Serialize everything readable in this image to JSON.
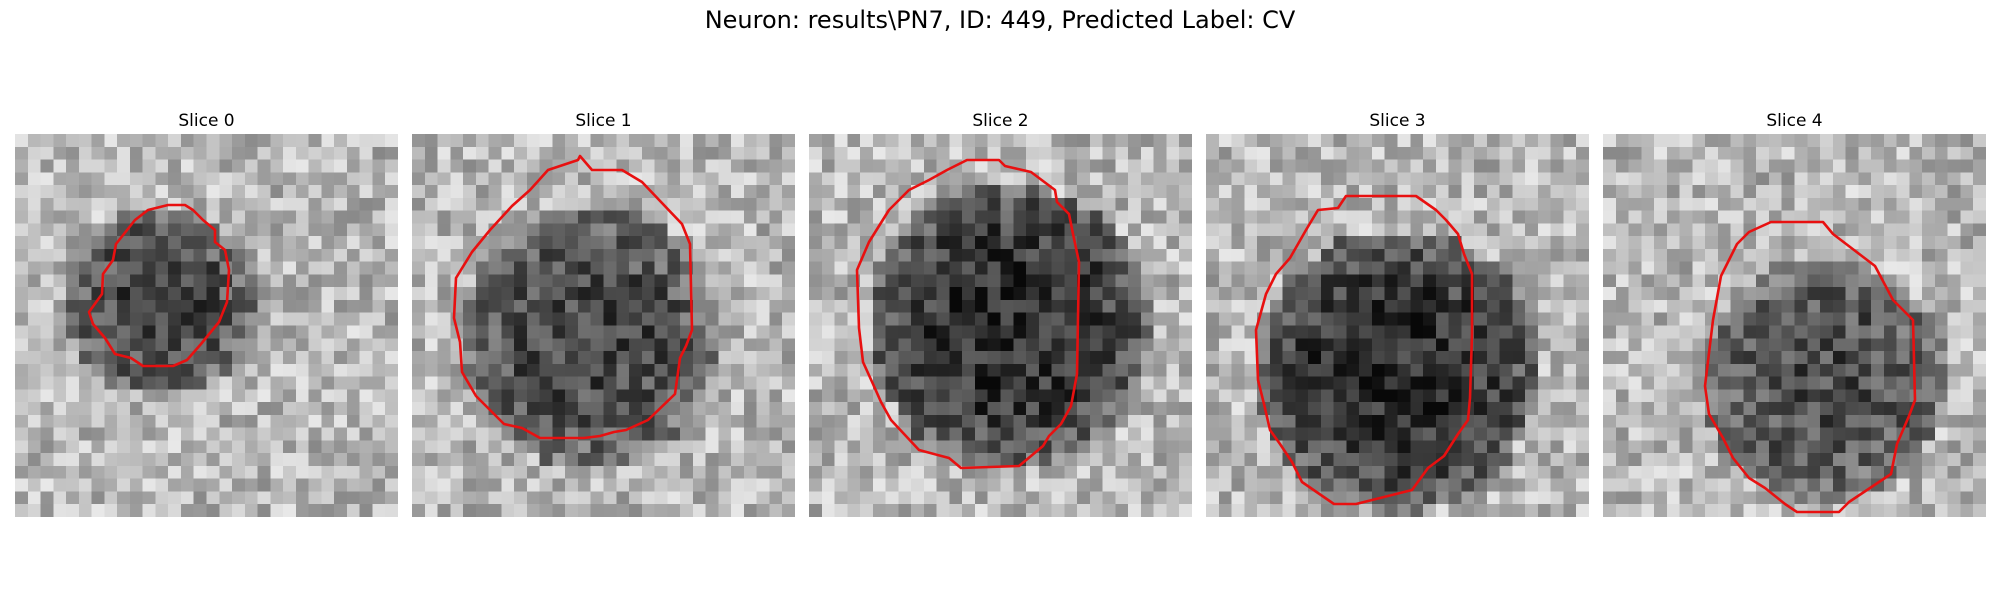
{
  "figure": {
    "title": "Neuron: results\\PN7, ID: 449, Predicted Label: CV"
  },
  "colors": {
    "contour": "#e81010",
    "background": "#ffffff"
  },
  "panels": [
    {
      "title": "Slice 0",
      "icon": "grayscale-image-with-red-contour"
    },
    {
      "title": "Slice 1",
      "icon": "grayscale-image-with-red-contour"
    },
    {
      "title": "Slice 2",
      "icon": "grayscale-image-with-red-contour"
    },
    {
      "title": "Slice 3",
      "icon": "grayscale-image-with-red-contour"
    },
    {
      "title": "Slice 4",
      "icon": "grayscale-image-with-red-contour"
    }
  ]
}
